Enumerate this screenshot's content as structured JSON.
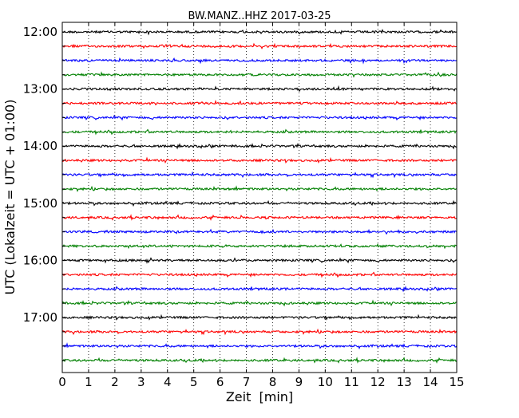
{
  "chart_data": {
    "type": "line",
    "title": "BW.MANZ..HHZ 2017-03-25",
    "xlabel": "Zeit  [min]",
    "ylabel": "UTC (Lokalzeit = UTC + 01:00)",
    "xlim": [
      0,
      15
    ],
    "x_ticks": [
      "0",
      "1",
      "2",
      "3",
      "4",
      "5",
      "6",
      "7",
      "8",
      "9",
      "10",
      "11",
      "12",
      "13",
      "14",
      "15"
    ],
    "y_ticks": [
      "12:00",
      "13:00",
      "14:00",
      "15:00",
      "16:00",
      "17:00"
    ],
    "row_minutes": 15,
    "rows": [
      "12:00",
      "12:15",
      "12:30",
      "12:45",
      "13:00",
      "13:15",
      "13:30",
      "13:45",
      "14:00",
      "14:15",
      "14:30",
      "14:45",
      "15:00",
      "15:15",
      "15:30",
      "15:45",
      "16:00",
      "16:15",
      "16:30",
      "16:45",
      "17:00",
      "17:15",
      "17:30",
      "17:45"
    ],
    "trace_colors": [
      "#000000",
      "#ff0000",
      "#0000ff",
      "#008000"
    ],
    "grid": "vertical dotted"
  }
}
